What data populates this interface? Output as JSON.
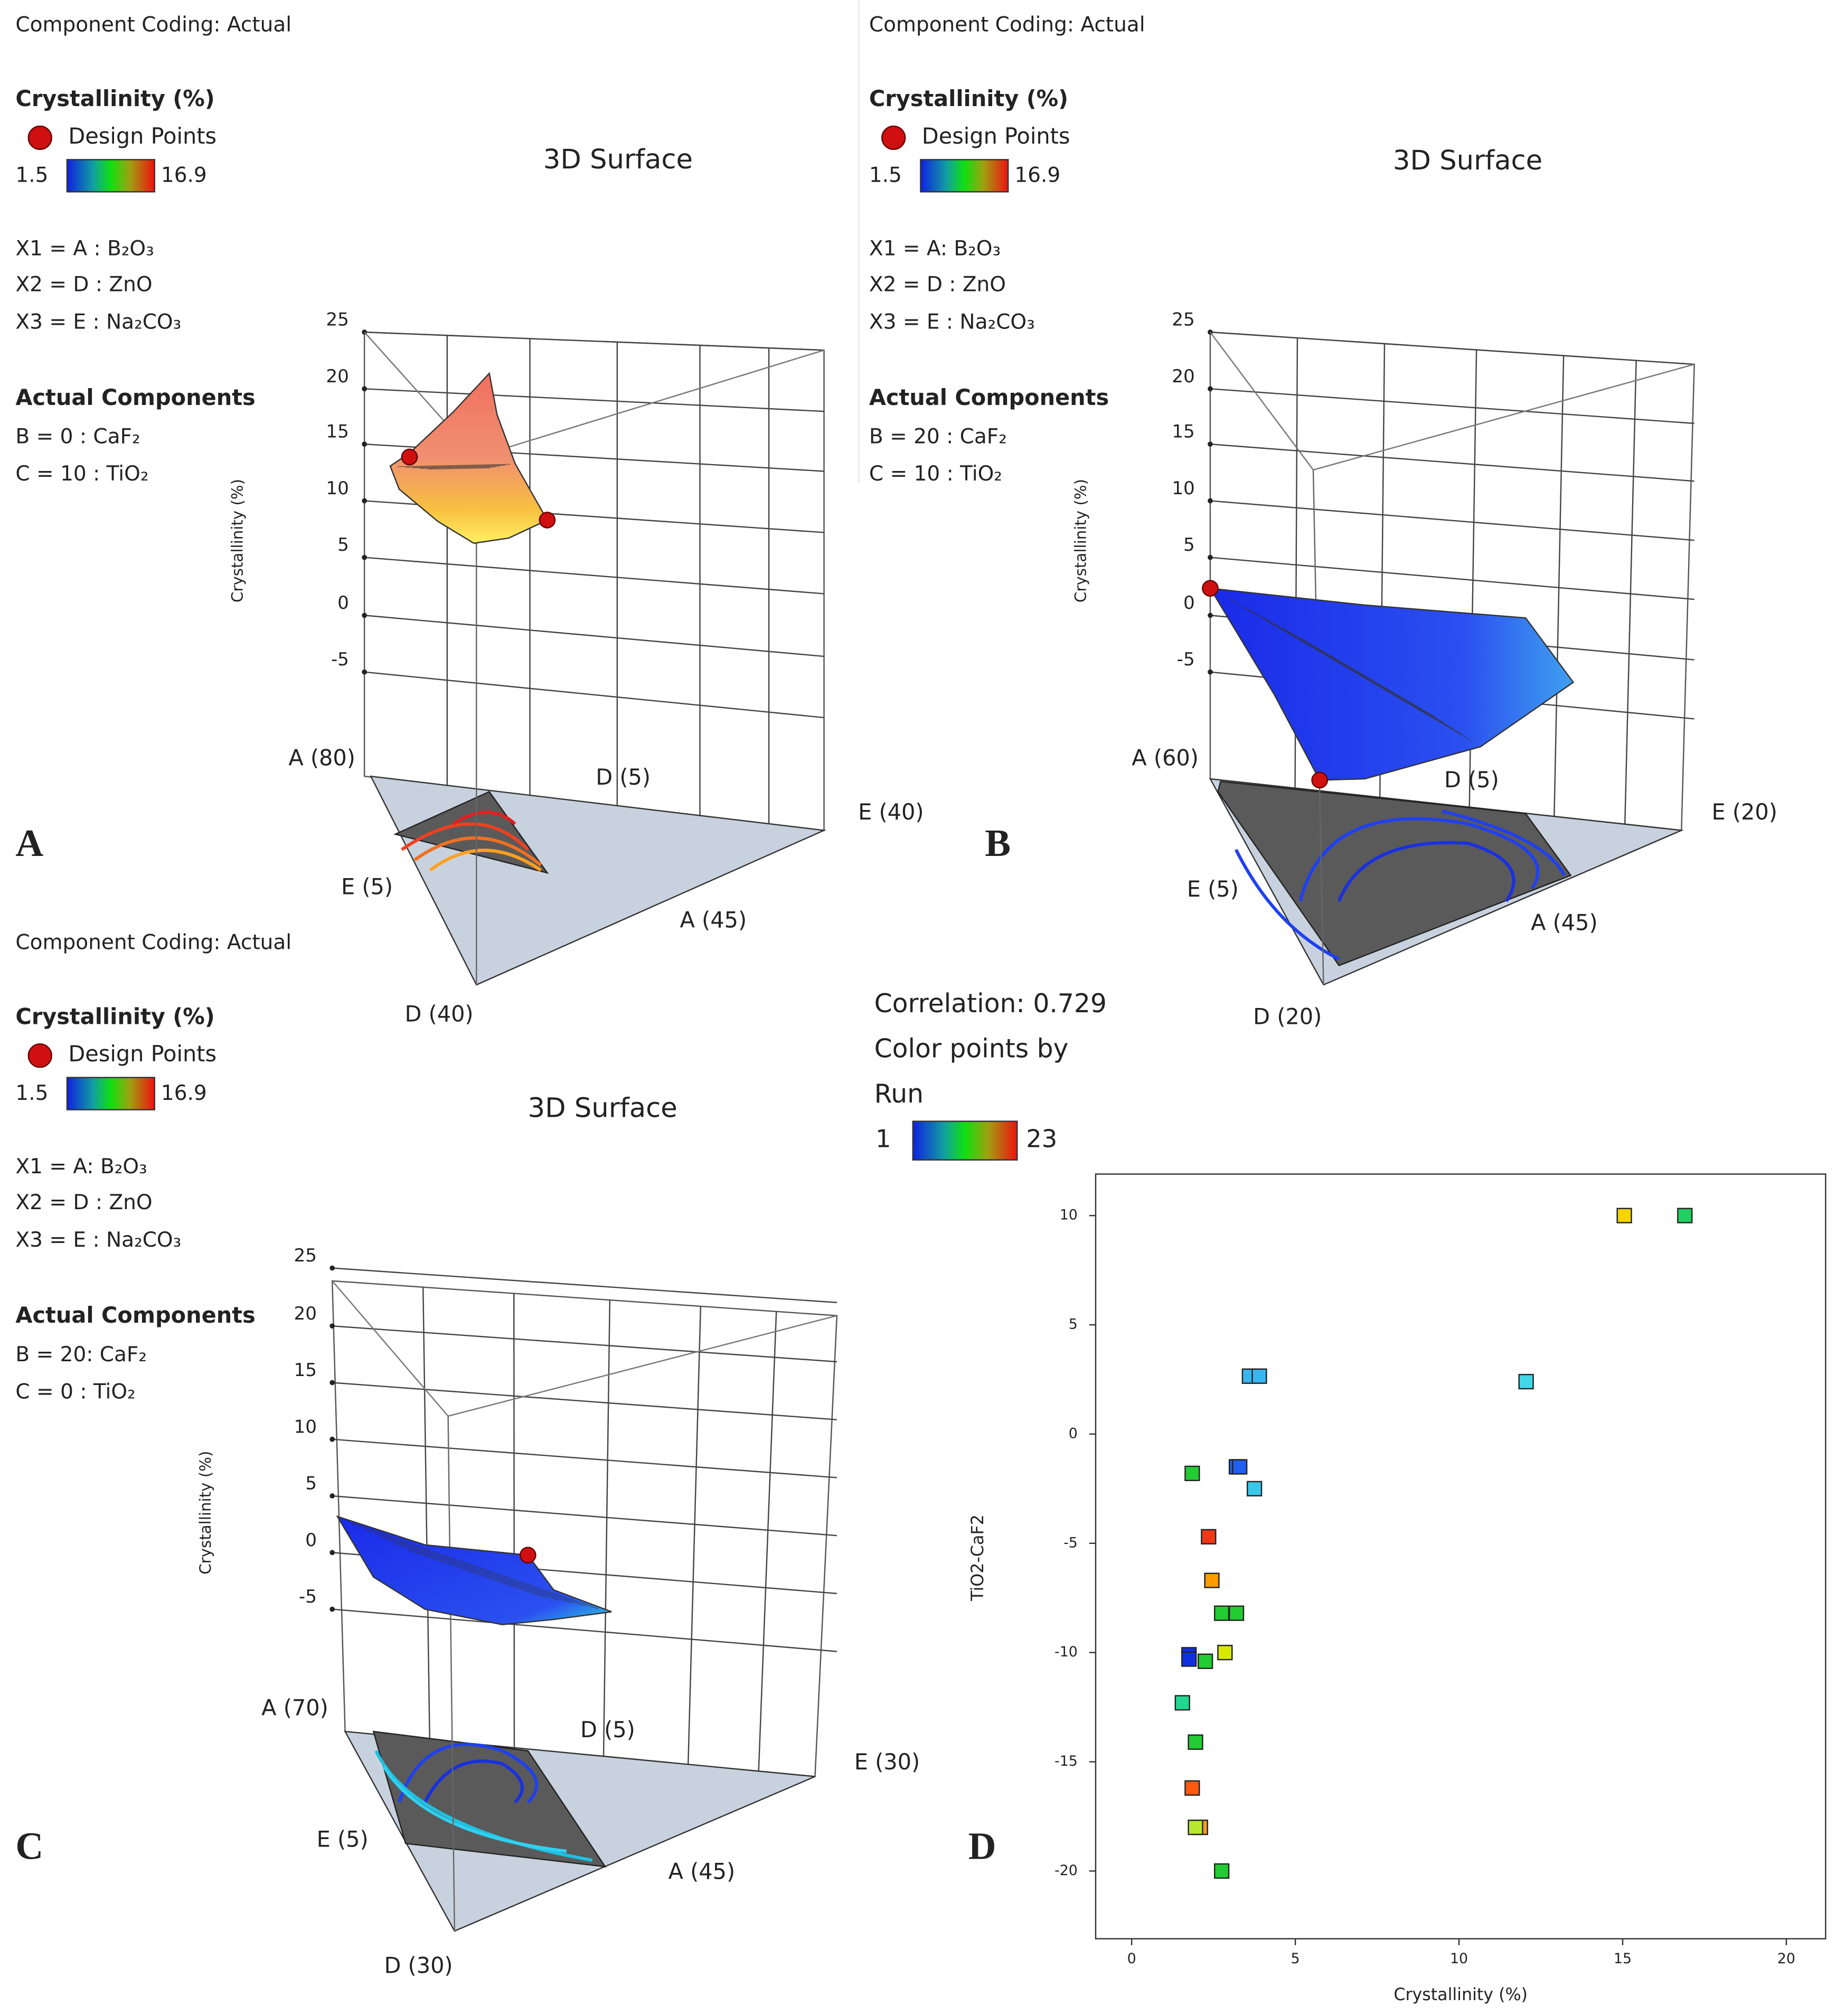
{
  "panels": [
    {
      "letter": "A",
      "coding": "Component Coding: Actual",
      "response": "Crystallinity  (%)",
      "design": "Design Points",
      "low": "1.5",
      "high": "16.9",
      "title": "3D Surface",
      "x1": "X1 = A : B₂O₃",
      "x2": "X2 = D : ZnO",
      "x3": "X3 = E : Na₂CO₃",
      "actual": "Actual Components",
      "b": "B = 0  : CaF₂",
      "c": "C = 10 : TiO₂",
      "zlabel": "Crystallinity (%)",
      "zticks": [
        "25",
        "20",
        "15",
        "10",
        "5",
        "0",
        "-5"
      ],
      "corners": [
        "A (80)",
        "D (5)",
        "E (40)",
        "E (5)",
        "A (45)",
        "D (40)"
      ]
    },
    {
      "letter": "B",
      "coding": "Component Coding: Actual",
      "response": "Crystallinity  (%)",
      "design": "Design Points",
      "low": "1.5",
      "high": "16.9",
      "title": "3D Surface",
      "x1": "X1 = A: B₂O₃",
      "x2": "X2 = D : ZnO",
      "x3": "X3 = E  : Na₂CO₃",
      "actual": "Actual Components",
      "b": "B = 20  : CaF₂",
      "c": "C = 10  : TiO₂",
      "zlabel": "Crystallinity (%)",
      "zticks": [
        "25",
        "20",
        "15",
        "10",
        "5",
        "0",
        "-5"
      ],
      "corners": [
        "A (60)",
        "D (5)",
        "E (20)",
        "E (5)",
        "A (45)",
        "D (20)"
      ]
    },
    {
      "letter": "C",
      "coding": "Component Coding: Actual",
      "response": "Crystallinity  (%)",
      "design": "Design Points",
      "low": "1.5",
      "high": "16.9",
      "title": "3D Surface",
      "x1": "X1 = A: B₂O₃",
      "x2": "X2 = D : ZnO",
      "x3": "X3 = E : Na₂CO₃",
      "actual": "Actual Components",
      "b": "B = 20: CaF₂",
      "c": "C = 0 : TiO₂",
      "zlabel": "Crystallinity (%)",
      "zticks": [
        "25",
        "20",
        "15",
        "10",
        "5",
        "0",
        "-5"
      ],
      "corners": [
        "A (70)",
        "D (5)",
        "E (30)",
        "E (5)",
        "A (45)",
        "D (30)"
      ]
    }
  ],
  "chart_data": {
    "type": "scatter",
    "letter": "D",
    "correlation": "Correlation: 0.729",
    "color_by": "Color points by",
    "color_by_name": "Run",
    "color_min": 1,
    "color_max": 23,
    "xlabel": "Crystallinity (%)",
    "ylabel": "TiO2-CaF2",
    "xlim": [
      -1.1,
      21.2
    ],
    "ylim": [
      -23.1,
      11.9
    ],
    "xticks": [
      0,
      5,
      10,
      15,
      20
    ],
    "yticks": [
      -20,
      -15,
      -10,
      -5,
      0,
      5,
      10
    ],
    "x": [
      15.05,
      16.9,
      3.6,
      3.9,
      12.05,
      1.85,
      3.2,
      3.75,
      2.35,
      2.45,
      2.75,
      3.2,
      2.85,
      1.75,
      1.75,
      2.25,
      1.55,
      1.95,
      1.85,
      2.1,
      1.95,
      2.75,
      3.3
    ],
    "values": [
      10,
      10,
      2.65,
      2.65,
      2.4,
      -1.8,
      -1.5,
      -2.5,
      -4.7,
      -6.7,
      -8.2,
      -8.2,
      -10,
      -10.1,
      -10.3,
      -10.4,
      -12.3,
      -14.1,
      -16.2,
      -18,
      -18,
      -20,
      -1.5
    ],
    "colors": [
      "#f5d400",
      "#1fd060",
      "#38b6f0",
      "#38b6f0",
      "#40d8e8",
      "#22cc33",
      "#2060f0",
      "#38c8e8",
      "#f03818",
      "#ff9a00",
      "#22cc33",
      "#22cc33",
      "#d8e800",
      "#1030e0",
      "#1030e0",
      "#22cc33",
      "#20d890",
      "#22cc33",
      "#ff5a10",
      "#ff9a20",
      "#b8e830",
      "#22cc33",
      "#2060f0"
    ]
  }
}
